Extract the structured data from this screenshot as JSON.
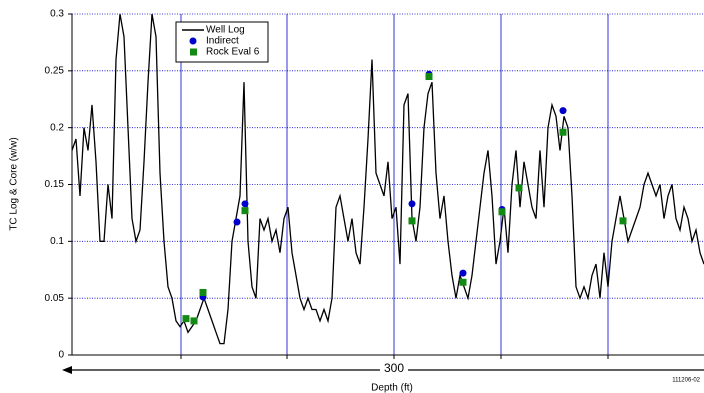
{
  "chart_data": {
    "type": "line",
    "ylabel": "TC Log & Core (w/w)",
    "xlabel": "Depth (ft)",
    "span_label": "300",
    "code": "111206-02",
    "xlim": [
      0,
      316
    ],
    "xticks": [
      54.5,
      107.5,
      161,
      214.5,
      268
    ],
    "ylim": [
      0,
      0.3
    ],
    "yticks": [
      0,
      0.05,
      0.1,
      0.15,
      0.2,
      0.25,
      0.3
    ],
    "grid": true,
    "grid_color": "#0000cc",
    "legend": "upper left",
    "series": [
      {
        "name": "Well Log",
        "type": "line",
        "color": "#000000",
        "x": [
          0,
          2,
          4,
          6,
          8,
          10,
          12,
          14,
          16,
          18,
          20,
          22,
          24,
          26,
          28,
          30,
          32,
          34,
          36,
          38,
          40,
          42,
          44,
          46,
          48,
          50,
          52,
          54,
          56,
          58,
          60,
          62,
          64,
          66,
          68,
          70,
          72,
          74,
          76,
          78,
          80,
          82,
          84,
          86,
          88,
          90,
          92,
          94,
          96,
          98,
          100,
          102,
          104,
          106,
          108,
          110,
          112,
          114,
          116,
          118,
          120,
          122,
          124,
          126,
          128,
          130,
          132,
          134,
          136,
          138,
          140,
          142,
          144,
          146,
          148,
          150,
          152,
          154,
          156,
          158,
          160,
          162,
          164,
          166,
          168,
          170,
          172,
          174,
          176,
          178,
          180,
          182,
          184,
          186,
          188,
          190,
          192,
          194,
          196,
          198,
          200,
          202,
          204,
          206,
          208,
          210,
          212,
          214,
          216,
          218,
          220,
          222,
          224,
          226,
          228,
          230,
          232,
          234,
          236,
          238,
          240,
          242,
          244,
          246,
          248,
          250,
          252,
          254,
          256,
          258,
          260,
          262,
          264,
          266,
          268,
          270,
          272,
          274,
          276,
          278,
          280,
          282,
          284,
          286,
          288,
          290,
          292,
          294,
          296,
          298,
          300,
          302,
          304,
          306,
          308,
          310,
          312,
          314,
          316
        ],
        "values": [
          0.18,
          0.19,
          0.14,
          0.2,
          0.18,
          0.22,
          0.17,
          0.1,
          0.1,
          0.15,
          0.12,
          0.26,
          0.3,
          0.28,
          0.2,
          0.12,
          0.1,
          0.11,
          0.17,
          0.24,
          0.3,
          0.28,
          0.16,
          0.1,
          0.06,
          0.05,
          0.03,
          0.025,
          0.03,
          0.02,
          0.025,
          0.03,
          0.04,
          0.05,
          0.04,
          0.03,
          0.02,
          0.01,
          0.01,
          0.04,
          0.1,
          0.12,
          0.14,
          0.24,
          0.1,
          0.06,
          0.05,
          0.12,
          0.11,
          0.12,
          0.1,
          0.11,
          0.09,
          0.12,
          0.13,
          0.09,
          0.07,
          0.05,
          0.04,
          0.05,
          0.04,
          0.04,
          0.03,
          0.04,
          0.03,
          0.05,
          0.13,
          0.14,
          0.12,
          0.1,
          0.12,
          0.09,
          0.08,
          0.13,
          0.19,
          0.26,
          0.16,
          0.15,
          0.14,
          0.17,
          0.12,
          0.13,
          0.08,
          0.22,
          0.23,
          0.12,
          0.1,
          0.13,
          0.2,
          0.23,
          0.24,
          0.16,
          0.12,
          0.14,
          0.1,
          0.07,
          0.05,
          0.07,
          0.06,
          0.05,
          0.07,
          0.1,
          0.13,
          0.16,
          0.18,
          0.14,
          0.08,
          0.1,
          0.13,
          0.09,
          0.15,
          0.18,
          0.13,
          0.17,
          0.15,
          0.13,
          0.12,
          0.18,
          0.13,
          0.2,
          0.22,
          0.21,
          0.18,
          0.21,
          0.2,
          0.14,
          0.06,
          0.05,
          0.06,
          0.05,
          0.07,
          0.08,
          0.05,
          0.09,
          0.06,
          0.1,
          0.12,
          0.14,
          0.12,
          0.1,
          0.11,
          0.12,
          0.13,
          0.15,
          0.16,
          0.15,
          0.14,
          0.15,
          0.12,
          0.14,
          0.15,
          0.12,
          0.11,
          0.13,
          0.12,
          0.1,
          0.11,
          0.09,
          0.08
        ]
      },
      {
        "name": "Indirect",
        "type": "scatter",
        "marker": "circle",
        "color": "#0000cc",
        "x": [
          65.5,
          82.5,
          86.5,
          170,
          178.5,
          195.5,
          215,
          245.5
        ],
        "values": [
          0.051,
          0.117,
          0.133,
          0.133,
          0.247,
          0.072,
          0.128,
          0.215
        ]
      },
      {
        "name": "Rock Eval 6",
        "type": "scatter",
        "marker": "square",
        "color": "#138a13",
        "x": [
          57,
          61,
          65.5,
          86.5,
          170,
          178.5,
          195.5,
          215,
          223.5,
          245.5,
          275.5
        ],
        "values": [
          0.032,
          0.03,
          0.055,
          0.127,
          0.118,
          0.245,
          0.064,
          0.126,
          0.147,
          0.196,
          0.118
        ]
      }
    ]
  }
}
